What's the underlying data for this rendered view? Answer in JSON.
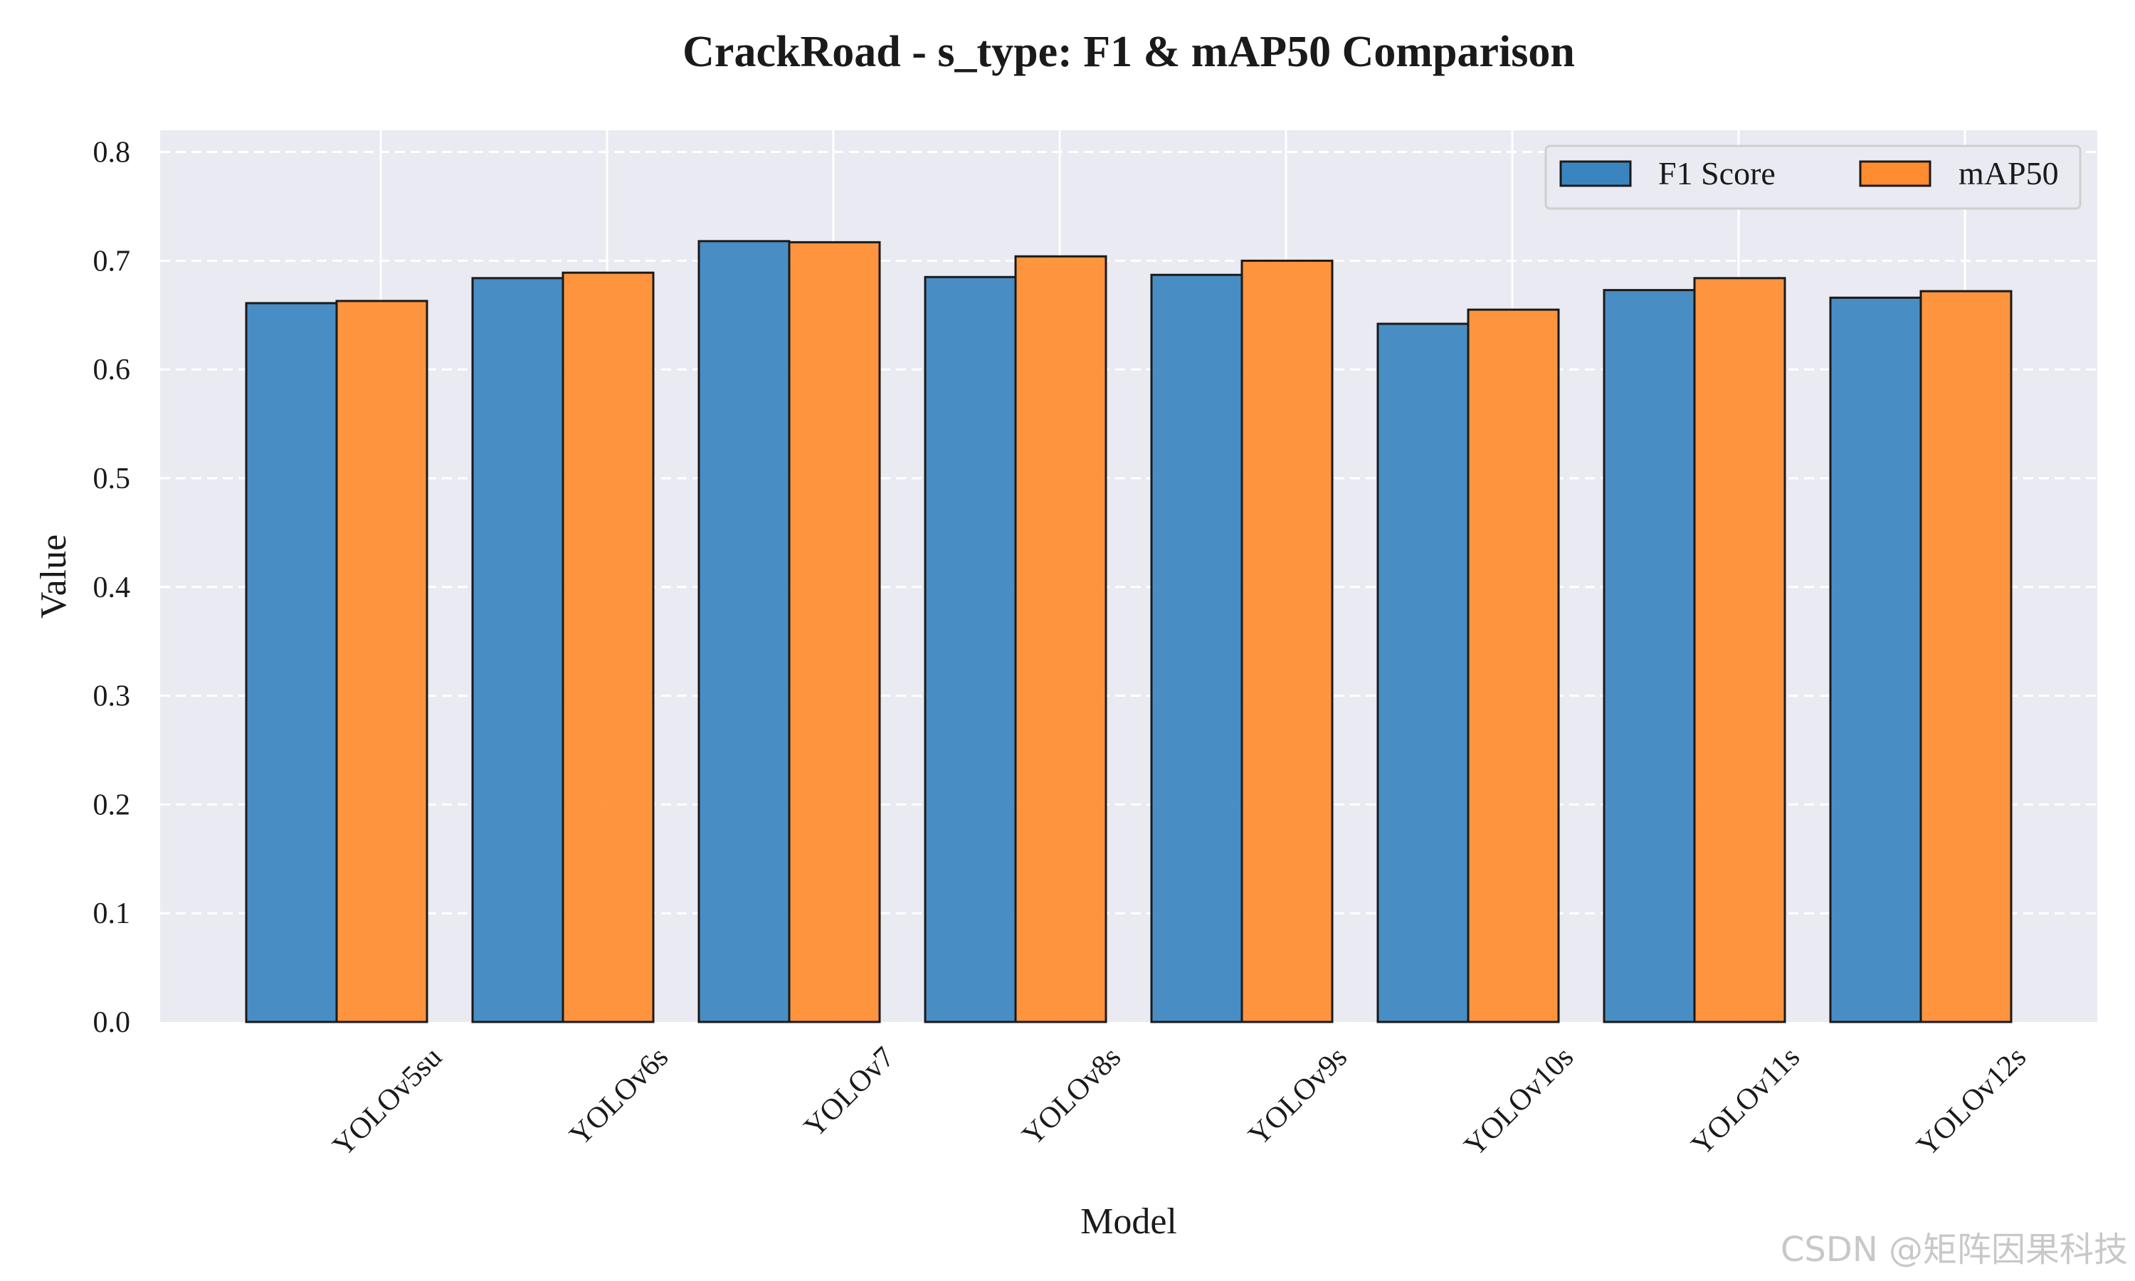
{
  "chart_data": {
    "type": "bar",
    "title": "CrackRoad - s_type: F1 & mAP50 Comparison",
    "xlabel": "Model",
    "ylabel": "Value",
    "ylim": [
      0,
      0.82
    ],
    "yticks": [
      "0.0",
      "0.1",
      "0.2",
      "0.3",
      "0.4",
      "0.5",
      "0.6",
      "0.7",
      "0.8"
    ],
    "categories": [
      "YOLOv5su",
      "YOLOv6s",
      "YOLOv7",
      "YOLOv8s",
      "YOLOv9s",
      "YOLOv10s",
      "YOLOv11s",
      "YOLOv12s"
    ],
    "series": [
      {
        "name": "F1 Score",
        "color": "#3A85C0",
        "values": [
          0.661,
          0.684,
          0.718,
          0.685,
          0.687,
          0.642,
          0.673,
          0.666
        ]
      },
      {
        "name": "mAP50",
        "color": "#FF8C2E",
        "values": [
          0.663,
          0.689,
          0.717,
          0.704,
          0.7,
          0.655,
          0.684,
          0.672
        ]
      }
    ],
    "grid": true,
    "legend": "top-right",
    "background": "#EAEAF2"
  },
  "watermark": "CSDN @矩阵因果科技"
}
